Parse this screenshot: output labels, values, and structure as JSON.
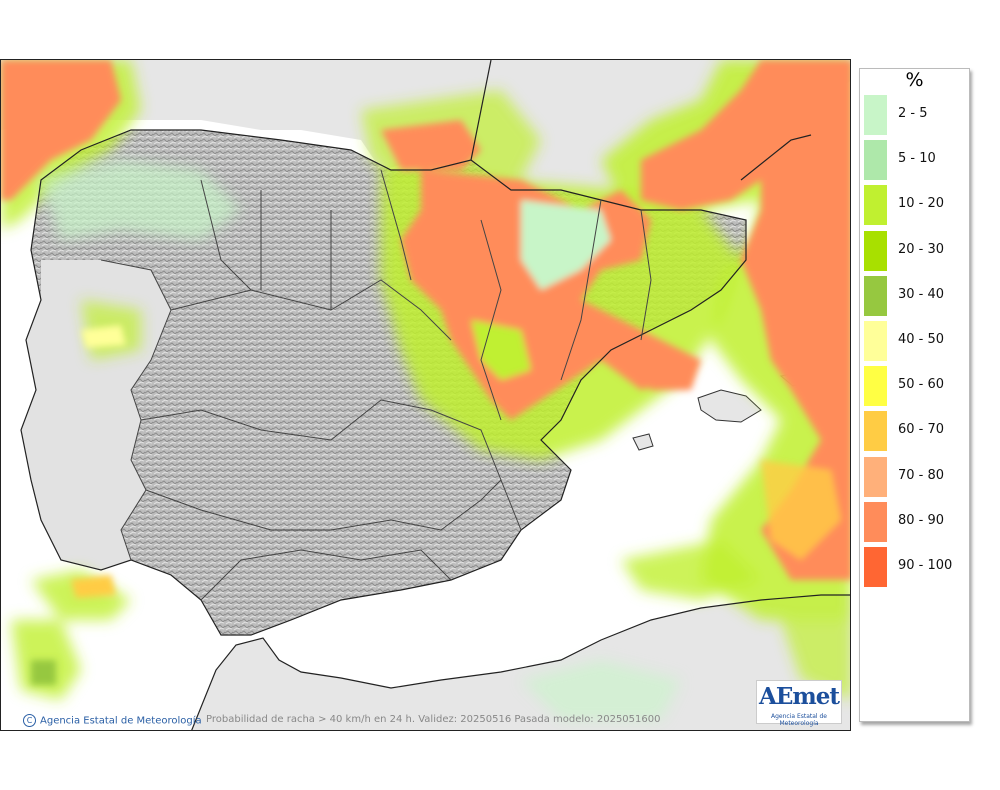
{
  "map": {
    "caption": "Probabilidad de racha > 40 km/h en 24 h. Validez: 20250516 Pasada modelo: 2025051600",
    "credit": "Agencia Estatal de Meteorología",
    "credit_icon": "copyright-icon",
    "logo_text": "AEmet",
    "logo_sub": "Agencia Estatal de Meteorología"
  },
  "legend": {
    "title": "%",
    "items": [
      {
        "label": "2 - 5",
        "color": "#c8f5c8"
      },
      {
        "label": "5 - 10",
        "color": "#aee8aa"
      },
      {
        "label": "10 - 20",
        "color": "#c0f030"
      },
      {
        "label": "20 - 30",
        "color": "#a8e000"
      },
      {
        "label": "30 - 40",
        "color": "#96c840"
      },
      {
        "label": "40 - 50",
        "color": "#ffff99"
      },
      {
        "label": "50 - 60",
        "color": "#ffff44"
      },
      {
        "label": "60 - 70",
        "color": "#ffcc44"
      },
      {
        "label": "70 - 80",
        "color": "#ffb07a"
      },
      {
        "label": "80 - 90",
        "color": "#ff8c5a"
      },
      {
        "label": "90 - 100",
        "color": "#ff6633"
      }
    ]
  }
}
